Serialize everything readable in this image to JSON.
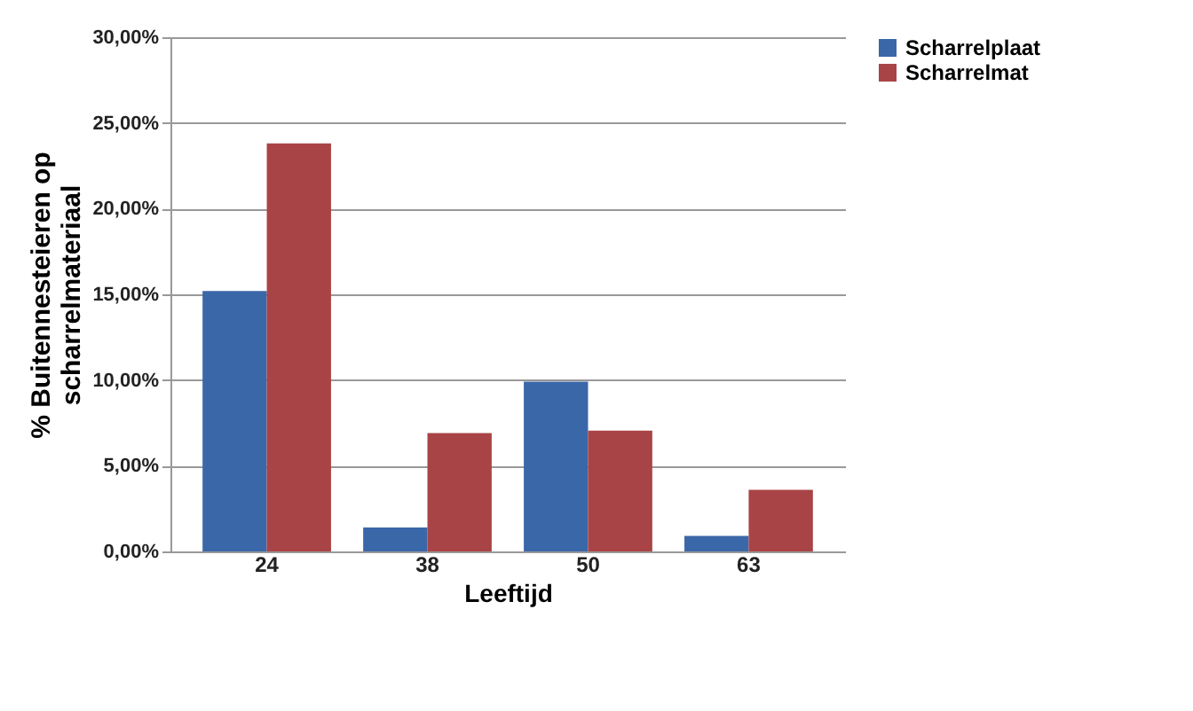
{
  "chart_data": {
    "type": "bar",
    "xlabel": "Leeftijd",
    "ylabel": "% Buitennesteieren op scharrelmateriaal",
    "categories": [
      "24",
      "38",
      "50",
      "63"
    ],
    "series": [
      {
        "name": "Scharrelplaat",
        "color": "#3a67a8",
        "values": [
          15.2,
          1.4,
          9.9,
          0.9
        ]
      },
      {
        "name": "Scharrelmat",
        "color": "#a94446",
        "values": [
          23.8,
          6.9,
          7.05,
          3.6
        ]
      }
    ],
    "ylim": [
      0,
      30
    ],
    "yticks": [
      {
        "value": 0,
        "label": "0,00%"
      },
      {
        "value": 5,
        "label": "5,00%"
      },
      {
        "value": 10,
        "label": "10,00%"
      },
      {
        "value": 15,
        "label": "15,00%"
      },
      {
        "value": 20,
        "label": "20,00%"
      },
      {
        "value": 25,
        "label": "25,00%"
      },
      {
        "value": 30,
        "label": "30,00%"
      }
    ],
    "grid": "y",
    "legend": "right"
  }
}
